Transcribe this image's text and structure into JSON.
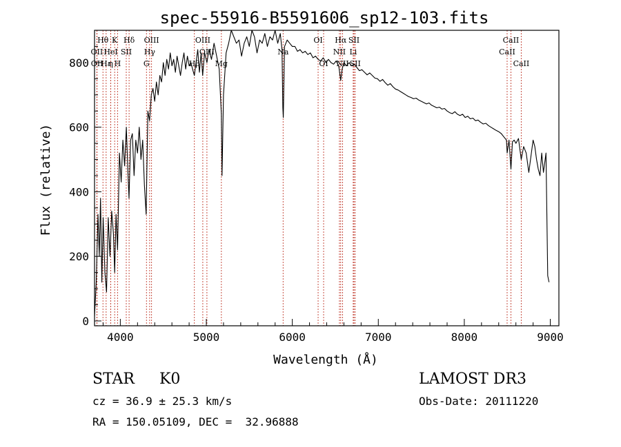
{
  "chart_data": {
    "type": "line",
    "title": "spec-55916-B5591606_sp12-103.fits",
    "xlabel": "Wavelength (Å)",
    "ylabel": "Flux (relative)",
    "xlim": [
      3700,
      9100
    ],
    "ylim": [
      -15,
      900
    ],
    "xticks": [
      4000,
      5000,
      6000,
      7000,
      8000,
      9000
    ],
    "yticks": [
      0,
      200,
      400,
      600,
      800
    ],
    "grid": false,
    "series": [
      {
        "name": "spectrum",
        "color": "#000000",
        "points": [
          [
            3700,
            15
          ],
          [
            3720,
            120
          ],
          [
            3740,
            330
          ],
          [
            3755,
            200
          ],
          [
            3770,
            380
          ],
          [
            3785,
            120
          ],
          [
            3800,
            320
          ],
          [
            3820,
            150
          ],
          [
            3840,
            90
          ],
          [
            3860,
            320
          ],
          [
            3880,
            200
          ],
          [
            3900,
            340
          ],
          [
            3920,
            270
          ],
          [
            3934,
            150
          ],
          [
            3950,
            330
          ],
          [
            3968,
            220
          ],
          [
            3990,
            520
          ],
          [
            4010,
            430
          ],
          [
            4030,
            560
          ],
          [
            4050,
            480
          ],
          [
            4070,
            600
          ],
          [
            4090,
            450
          ],
          [
            4101,
            380
          ],
          [
            4120,
            560
          ],
          [
            4140,
            580
          ],
          [
            4160,
            450
          ],
          [
            4180,
            560
          ],
          [
            4200,
            520
          ],
          [
            4220,
            600
          ],
          [
            4240,
            500
          ],
          [
            4260,
            560
          ],
          [
            4280,
            420
          ],
          [
            4300,
            330
          ],
          [
            4320,
            650
          ],
          [
            4340,
            620
          ],
          [
            4360,
            700
          ],
          [
            4380,
            720
          ],
          [
            4400,
            680
          ],
          [
            4420,
            740
          ],
          [
            4440,
            700
          ],
          [
            4460,
            760
          ],
          [
            4480,
            740
          ],
          [
            4500,
            800
          ],
          [
            4520,
            760
          ],
          [
            4540,
            810
          ],
          [
            4560,
            780
          ],
          [
            4580,
            830
          ],
          [
            4600,
            790
          ],
          [
            4620,
            810
          ],
          [
            4640,
            770
          ],
          [
            4660,
            820
          ],
          [
            4680,
            790
          ],
          [
            4700,
            760
          ],
          [
            4720,
            800
          ],
          [
            4740,
            830
          ],
          [
            4760,
            780
          ],
          [
            4780,
            820
          ],
          [
            4800,
            790
          ],
          [
            4820,
            800
          ],
          [
            4840,
            780
          ],
          [
            4861,
            760
          ],
          [
            4880,
            800
          ],
          [
            4900,
            840
          ],
          [
            4920,
            770
          ],
          [
            4940,
            830
          ],
          [
            4957,
            760
          ],
          [
            4980,
            830
          ],
          [
            5007,
            800
          ],
          [
            5030,
            840
          ],
          [
            5060,
            810
          ],
          [
            5090,
            860
          ],
          [
            5120,
            820
          ],
          [
            5150,
            780
          ],
          [
            5175,
            640
          ],
          [
            5183,
            450
          ],
          [
            5200,
            700
          ],
          [
            5230,
            830
          ],
          [
            5260,
            860
          ],
          [
            5290,
            900
          ],
          [
            5320,
            880
          ],
          [
            5350,
            860
          ],
          [
            5380,
            870
          ],
          [
            5410,
            820
          ],
          [
            5440,
            860
          ],
          [
            5470,
            880
          ],
          [
            5500,
            850
          ],
          [
            5530,
            900
          ],
          [
            5560,
            880
          ],
          [
            5590,
            830
          ],
          [
            5620,
            870
          ],
          [
            5650,
            860
          ],
          [
            5680,
            890
          ],
          [
            5710,
            850
          ],
          [
            5740,
            880
          ],
          [
            5770,
            870
          ],
          [
            5800,
            900
          ],
          [
            5830,
            860
          ],
          [
            5860,
            890
          ],
          [
            5880,
            840
          ],
          [
            5890,
            660
          ],
          [
            5895,
            630
          ],
          [
            5910,
            850
          ],
          [
            5940,
            870
          ],
          [
            5970,
            860
          ],
          [
            6000,
            850
          ],
          [
            6030,
            850
          ],
          [
            6060,
            835
          ],
          [
            6090,
            840
          ],
          [
            6120,
            830
          ],
          [
            6150,
            835
          ],
          [
            6180,
            825
          ],
          [
            6210,
            830
          ],
          [
            6240,
            815
          ],
          [
            6270,
            820
          ],
          [
            6300,
            810
          ],
          [
            6330,
            805
          ],
          [
            6360,
            815
          ],
          [
            6390,
            800
          ],
          [
            6420,
            810
          ],
          [
            6450,
            800
          ],
          [
            6480,
            795
          ],
          [
            6510,
            805
          ],
          [
            6540,
            790
          ],
          [
            6563,
            745
          ],
          [
            6580,
            780
          ],
          [
            6600,
            800
          ],
          [
            6630,
            790
          ],
          [
            6660,
            800
          ],
          [
            6690,
            790
          ],
          [
            6720,
            795
          ],
          [
            6750,
            785
          ],
          [
            6780,
            775
          ],
          [
            6810,
            778
          ],
          [
            6840,
            770
          ],
          [
            6870,
            762
          ],
          [
            6900,
            768
          ],
          [
            6930,
            760
          ],
          [
            6960,
            752
          ],
          [
            6990,
            750
          ],
          [
            7020,
            742
          ],
          [
            7050,
            748
          ],
          [
            7080,
            738
          ],
          [
            7110,
            730
          ],
          [
            7140,
            735
          ],
          [
            7170,
            725
          ],
          [
            7200,
            718
          ],
          [
            7230,
            715
          ],
          [
            7260,
            710
          ],
          [
            7290,
            705
          ],
          [
            7320,
            700
          ],
          [
            7350,
            695
          ],
          [
            7380,
            692
          ],
          [
            7410,
            688
          ],
          [
            7440,
            690
          ],
          [
            7470,
            684
          ],
          [
            7500,
            680
          ],
          [
            7530,
            676
          ],
          [
            7560,
            672
          ],
          [
            7590,
            675
          ],
          [
            7620,
            668
          ],
          [
            7650,
            664
          ],
          [
            7680,
            660
          ],
          [
            7710,
            662
          ],
          [
            7740,
            656
          ],
          [
            7770,
            658
          ],
          [
            7800,
            650
          ],
          [
            7830,
            645
          ],
          [
            7860,
            642
          ],
          [
            7890,
            648
          ],
          [
            7920,
            640
          ],
          [
            7950,
            636
          ],
          [
            7980,
            640
          ],
          [
            8010,
            630
          ],
          [
            8040,
            634
          ],
          [
            8070,
            626
          ],
          [
            8100,
            628
          ],
          [
            8130,
            620
          ],
          [
            8160,
            622
          ],
          [
            8190,
            615
          ],
          [
            8220,
            610
          ],
          [
            8250,
            612
          ],
          [
            8280,
            605
          ],
          [
            8310,
            600
          ],
          [
            8340,
            595
          ],
          [
            8370,
            590
          ],
          [
            8400,
            586
          ],
          [
            8430,
            580
          ],
          [
            8460,
            570
          ],
          [
            8490,
            560
          ],
          [
            8498,
            520
          ],
          [
            8520,
            560
          ],
          [
            8542,
            470
          ],
          [
            8560,
            555
          ],
          [
            8580,
            560
          ],
          [
            8600,
            550
          ],
          [
            8630,
            565
          ],
          [
            8662,
            500
          ],
          [
            8690,
            540
          ],
          [
            8720,
            520
          ],
          [
            8750,
            460
          ],
          [
            8780,
            520
          ],
          [
            8800,
            560
          ],
          [
            8820,
            540
          ],
          [
            8840,
            500
          ],
          [
            8860,
            470
          ],
          [
            8880,
            450
          ],
          [
            8900,
            520
          ],
          [
            8920,
            460
          ],
          [
            8940,
            500
          ],
          [
            8950,
            520
          ],
          [
            8970,
            140
          ],
          [
            8985,
            120
          ]
        ]
      }
    ],
    "spectral_lines": [
      {
        "label": "Hθ",
        "x": 3798,
        "row": 1
      },
      {
        "label": "OII",
        "x": 3727,
        "row": 2
      },
      {
        "label": "OII",
        "x": 3729,
        "row": 3
      },
      {
        "label": "Hε",
        "x": 3835,
        "row": 3
      },
      {
        "label": "HeI",
        "x": 3889,
        "row": 2
      },
      {
        "label": "K",
        "x": 3934,
        "row": 1
      },
      {
        "label": "η",
        "x": 3889,
        "row": 3
      },
      {
        "label": "SII",
        "x": 4069,
        "row": 2
      },
      {
        "label": "H",
        "x": 3968,
        "row": 3
      },
      {
        "label": "Hδ",
        "x": 4102,
        "row": 1
      },
      {
        "label": "OIII",
        "x": 4363,
        "row": 1
      },
      {
        "label": "Hγ",
        "x": 4341,
        "row": 2
      },
      {
        "label": "G",
        "x": 4304,
        "row": 3
      },
      {
        "label": "OIII",
        "x": 4959,
        "row": 1
      },
      {
        "label": "OIII",
        "x": 5007,
        "row": 2
      },
      {
        "label": "Hβ",
        "x": 4861,
        "row": 3
      },
      {
        "label": "Mg",
        "x": 5175,
        "row": 3
      },
      {
        "label": "Na",
        "x": 5893,
        "row": 2
      },
      {
        "label": "OI",
        "x": 6300,
        "row": 1
      },
      {
        "label": "OI",
        "x": 6364,
        "row": 3
      },
      {
        "label": "Hα",
        "x": 6563,
        "row": 1
      },
      {
        "label": "NII",
        "x": 6548,
        "row": 2
      },
      {
        "label": "NII",
        "x": 6584,
        "row": 3
      },
      {
        "label": "SII",
        "x": 6717,
        "row": 1
      },
      {
        "label": "Li",
        "x": 6708,
        "row": 2
      },
      {
        "label": "SII",
        "x": 6731,
        "row": 3
      },
      {
        "label": "CaII",
        "x": 8542,
        "row": 1
      },
      {
        "label": "CaII",
        "x": 8498,
        "row": 2
      },
      {
        "label": "CaII",
        "x": 8662,
        "row": 3
      }
    ]
  },
  "info": {
    "class_type": "STAR",
    "subclass": "K0",
    "survey": "LAMOST DR3",
    "cz": "cz = 36.9 ± 25.3 km/s",
    "obs_date": "Obs-Date: 20111220",
    "coords": "RA = 150.05109, DEC =  32.96888"
  }
}
